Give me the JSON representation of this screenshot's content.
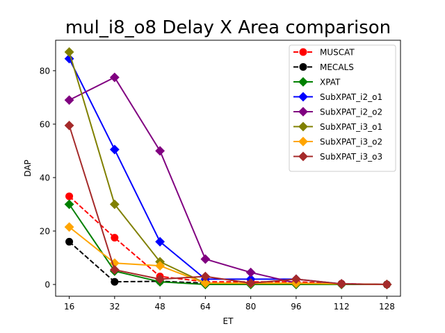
{
  "chart_data": {
    "type": "line",
    "title": "mul_i8_o8 Delay X Area comparison",
    "xlabel": "ET",
    "ylabel": "DAP",
    "x": [
      16,
      32,
      48,
      64,
      80,
      96,
      112,
      128
    ],
    "xticks": [
      16,
      32,
      48,
      64,
      80,
      96,
      112,
      128
    ],
    "yticks": [
      0,
      20,
      40,
      60,
      80
    ],
    "xlim": [
      11.2,
      132.8
    ],
    "ylim": [
      -4.4,
      91.4
    ],
    "legend_position": "top-right",
    "grid": false,
    "series": [
      {
        "name": "MUSCAT",
        "color": "#ff0000",
        "marker": "circle",
        "dashed": true,
        "values": [
          33.0,
          17.5,
          3.0,
          1.0,
          1.0,
          1.0,
          0.3,
          0.0
        ]
      },
      {
        "name": "MECALS",
        "color": "#000000",
        "marker": "circle",
        "dashed": true,
        "values": [
          16.0,
          1.0,
          1.2,
          0.5,
          0.3,
          0.3,
          0.2,
          0.0
        ]
      },
      {
        "name": "XPAT",
        "color": "#008000",
        "marker": "diamond",
        "dashed": false,
        "values": [
          30.0,
          5.0,
          1.0,
          0.0,
          0.0,
          0.0,
          0.0,
          0.0
        ]
      },
      {
        "name": "SubXPAT_i2_o1",
        "color": "#0000ff",
        "marker": "diamond",
        "dashed": false,
        "values": [
          84.5,
          50.5,
          16.0,
          2.0,
          2.0,
          2.0,
          0.2,
          0.0
        ]
      },
      {
        "name": "SubXPAT_i2_o2",
        "color": "#800080",
        "marker": "diamond",
        "dashed": false,
        "values": [
          69.0,
          77.5,
          50.0,
          9.5,
          4.5,
          0.5,
          0.3,
          0.0
        ]
      },
      {
        "name": "SubXPAT_i3_o1",
        "color": "#808000",
        "marker": "diamond",
        "dashed": false,
        "values": [
          87.0,
          30.0,
          8.5,
          0.5,
          0.3,
          0.3,
          0.2,
          0.0
        ]
      },
      {
        "name": "SubXPAT_i3_o2",
        "color": "#ffa500",
        "marker": "diamond",
        "dashed": false,
        "values": [
          21.5,
          8.0,
          7.0,
          0.5,
          0.5,
          0.5,
          0.2,
          0.0
        ]
      },
      {
        "name": "SubXPAT_i3_o3",
        "color": "#a52a2a",
        "marker": "diamond",
        "dashed": false,
        "values": [
          59.5,
          5.5,
          2.0,
          3.0,
          0.5,
          2.0,
          0.2,
          0.0
        ]
      }
    ]
  }
}
